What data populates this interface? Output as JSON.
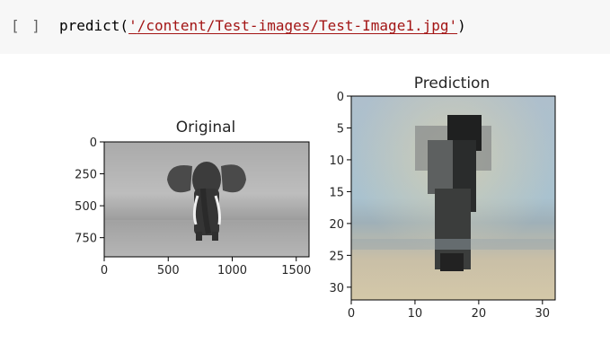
{
  "cell": {
    "run_bracket": "[ ]",
    "code_func": "predict(",
    "code_quote_open": "'",
    "code_path": "/content/Test-images/Test-Image1.jpg",
    "code_quote_close": "'",
    "code_close": ")"
  },
  "chart_data": [
    {
      "type": "image",
      "title": "Original",
      "xlim": [
        0,
        1600
      ],
      "ylim": [
        900,
        0
      ],
      "x_ticks": [
        "0",
        "500",
        "1000",
        "1500"
      ],
      "y_ticks": [
        "0",
        "250",
        "500",
        "750"
      ],
      "x_tick_values": [
        0,
        500,
        1000,
        1500
      ],
      "y_tick_values": [
        0,
        250,
        500,
        750
      ]
    },
    {
      "type": "image",
      "title": "Prediction",
      "xlim": [
        0,
        32
      ],
      "ylim": [
        32,
        0
      ],
      "x_ticks": [
        "0",
        "10",
        "20",
        "30"
      ],
      "y_ticks": [
        "0",
        "5",
        "10",
        "15",
        "20",
        "25",
        "30"
      ],
      "x_tick_values": [
        0,
        10,
        20,
        30
      ],
      "y_tick_values": [
        0,
        5,
        10,
        15,
        20,
        25,
        30
      ]
    }
  ]
}
